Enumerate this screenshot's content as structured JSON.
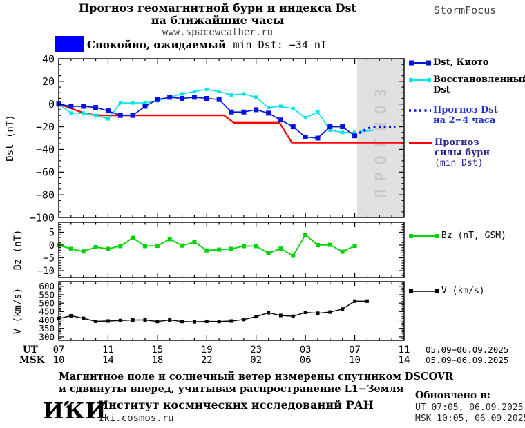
{
  "header": {
    "title_line1": "Прогноз геомагнитной бури и индекса Dst",
    "title_line2": "на ближайшие часы",
    "site": "www.spaceweather.ru",
    "brand": "StormFocus"
  },
  "status": {
    "label_bold": "Спокойно, ожидаемый",
    "label_value": "min Dst: −34 nT",
    "swatch_color": "#0000ff"
  },
  "legend_dst": {
    "kyoto": "Dst, Киото",
    "restored_line1": "Восстановленный",
    "restored_line2": "Dst",
    "forecast_line1": "Прогноз Dst",
    "forecast_line2": "на 2−4 часа",
    "storm_line1": "Прогноз",
    "storm_line2": "силы бури",
    "storm_line3": "(min Dst)"
  },
  "legend_bz": "Bz (nT, GSM)",
  "legend_v": "V (km/s)",
  "xaxis": {
    "ut_label": "UT",
    "msk_label": "MSK",
    "ut_ticks": [
      "07",
      "11",
      "15",
      "19",
      "23",
      "03",
      "07",
      "11"
    ],
    "msk_ticks": [
      "10",
      "14",
      "18",
      "22",
      "02",
      "06",
      "10",
      "14"
    ],
    "ut_date": "05.09−06.09.2025",
    "msk_date": "05.09−06.09.2025",
    "hours_span": 28,
    "major_every_hours": 4
  },
  "footer": {
    "note_line1": "Магнитное поле и солнечный ветер измерены спутником DSCOVR",
    "note_line2": "и сдвинуты вперед, учитывая распространение L1−Земля",
    "logo": "ИКИ",
    "institute": "Институт космических исследований РАН",
    "site": "iki.cosmos.ru",
    "updated_title": "Обновлено в:",
    "updated_ut": "UT  07:05, 06.09.2025",
    "updated_msk": "MSK 10:05, 06.09.2025"
  },
  "colors": {
    "kyoto_blue": "#0011dd",
    "restored_cyan": "#00e5e5",
    "storm_red": "#ff0000",
    "bz_green": "#00d400",
    "v_black": "#000000",
    "forecast_region_gray": "#e0e0e0",
    "forecast_label_gray": "#c9c9c9"
  },
  "chart_data": [
    {
      "type": "line",
      "panel": "dst",
      "ylabel": "Dst (nT)",
      "ylim": [
        -100,
        40
      ],
      "yticks": [
        40,
        20,
        0,
        -20,
        -40,
        -60,
        -80,
        -100
      ],
      "ytick_labels": [
        "40",
        "20",
        "0",
        "−20",
        "−40",
        "−60",
        "−80",
        "−100"
      ],
      "x_unit": "hours since 07:00 UT 05.09.2025",
      "forecast_region": {
        "from_hour": 24.2,
        "to_hour": 28,
        "label": "ПРОГНОЗ"
      },
      "series": [
        {
          "name": "Прогноз силы бури (min Dst)",
          "color": "#ff0000",
          "style": "solid",
          "width": 2.4,
          "marker": null,
          "x": [
            0,
            0.7,
            1.4,
            2.1,
            2.8,
            3.5,
            13.4,
            14.2,
            17.9,
            18.9,
            28
          ],
          "values": [
            0,
            -2.5,
            -5.5,
            -8,
            -9.5,
            -10,
            -10,
            -16.5,
            -16.5,
            -34,
            -34
          ]
        },
        {
          "name": "Восстановленный Dst",
          "color": "#00e5e5",
          "style": "solid",
          "width": 1.6,
          "marker": "square",
          "marker_size": 5,
          "x_start": 0,
          "x_step": 1,
          "values": [
            0,
            -8,
            -8,
            -10,
            -13,
            1,
            1,
            1,
            3,
            6,
            9,
            11,
            13,
            11,
            8,
            9,
            6,
            -3,
            -2,
            -4,
            -12,
            -7,
            -23,
            -25,
            -25
          ]
        },
        {
          "name": "Восстановленный Dst (прогноз)",
          "color": "#00e5e5",
          "style": "solid",
          "width": 2.2,
          "marker": null,
          "x": [
            24.3,
            25.5
          ],
          "values": [
            -24.5,
            -23
          ]
        },
        {
          "name": "Dst, Киото",
          "color": "#0011dd",
          "style": "solid",
          "width": 1.6,
          "marker": "square",
          "marker_size": 7,
          "x_start": 0,
          "x_step": 1,
          "values": [
            0,
            -2,
            -2,
            -3,
            -6,
            -10,
            -10,
            -2,
            4,
            6,
            5,
            6,
            5,
            4,
            -7,
            -7,
            -5,
            -8,
            -14,
            -20,
            -29,
            -30,
            -20,
            -20,
            -28
          ]
        },
        {
          "name": "Прогноз Dst на 2−4 часа",
          "color": "#0011dd",
          "style": "dotted",
          "width": 3.4,
          "marker": null,
          "x": [
            24,
            24.6,
            25.2,
            25.8,
            27.3
          ],
          "values": [
            -28,
            -24,
            -21,
            -20,
            -20
          ]
        }
      ]
    },
    {
      "type": "line",
      "panel": "bz",
      "ylabel": "Bz (nT)",
      "ylim": [
        -12.7,
        8.9
      ],
      "yticks": [
        5,
        0,
        -5,
        -10
      ],
      "ytick_labels": [
        "5",
        "0",
        "−5",
        "−10"
      ],
      "series": [
        {
          "name": "Bz (nT, GSM)",
          "color": "#00d400",
          "style": "solid",
          "width": 1.8,
          "marker": "square",
          "marker_size": 6,
          "x_start": 0,
          "x_step": 1,
          "values": [
            0,
            -1.5,
            -2.5,
            -0.8,
            -1.5,
            -0.4,
            2.8,
            -0.4,
            -0.3,
            2.3,
            -0.2,
            1.2,
            -2.1,
            -1.8,
            -1.5,
            -0.4,
            -0.4,
            -3.2,
            -1.4,
            -4.2,
            4,
            0,
            0.1,
            -2.6,
            -0.3
          ]
        }
      ]
    },
    {
      "type": "line",
      "panel": "v",
      "ylabel": "V (km/s)",
      "ylim": [
        279,
        628
      ],
      "yticks": [
        600,
        550,
        500,
        450,
        400,
        350,
        300
      ],
      "ytick_labels": [
        "600",
        "550",
        "500",
        "450",
        "400",
        "350",
        "300"
      ],
      "series": [
        {
          "name": "V (km/s)",
          "color": "#000000",
          "style": "solid",
          "width": 1.4,
          "marker": "square",
          "marker_size": 5,
          "x_start": 0,
          "x_step": 1,
          "values": [
            408,
            425,
            410,
            392,
            394,
            397,
            400,
            400,
            391,
            400,
            391,
            389,
            392,
            391,
            394,
            403,
            420,
            443,
            427,
            422,
            445,
            440,
            447,
            465,
            512,
            512
          ]
        }
      ]
    }
  ]
}
